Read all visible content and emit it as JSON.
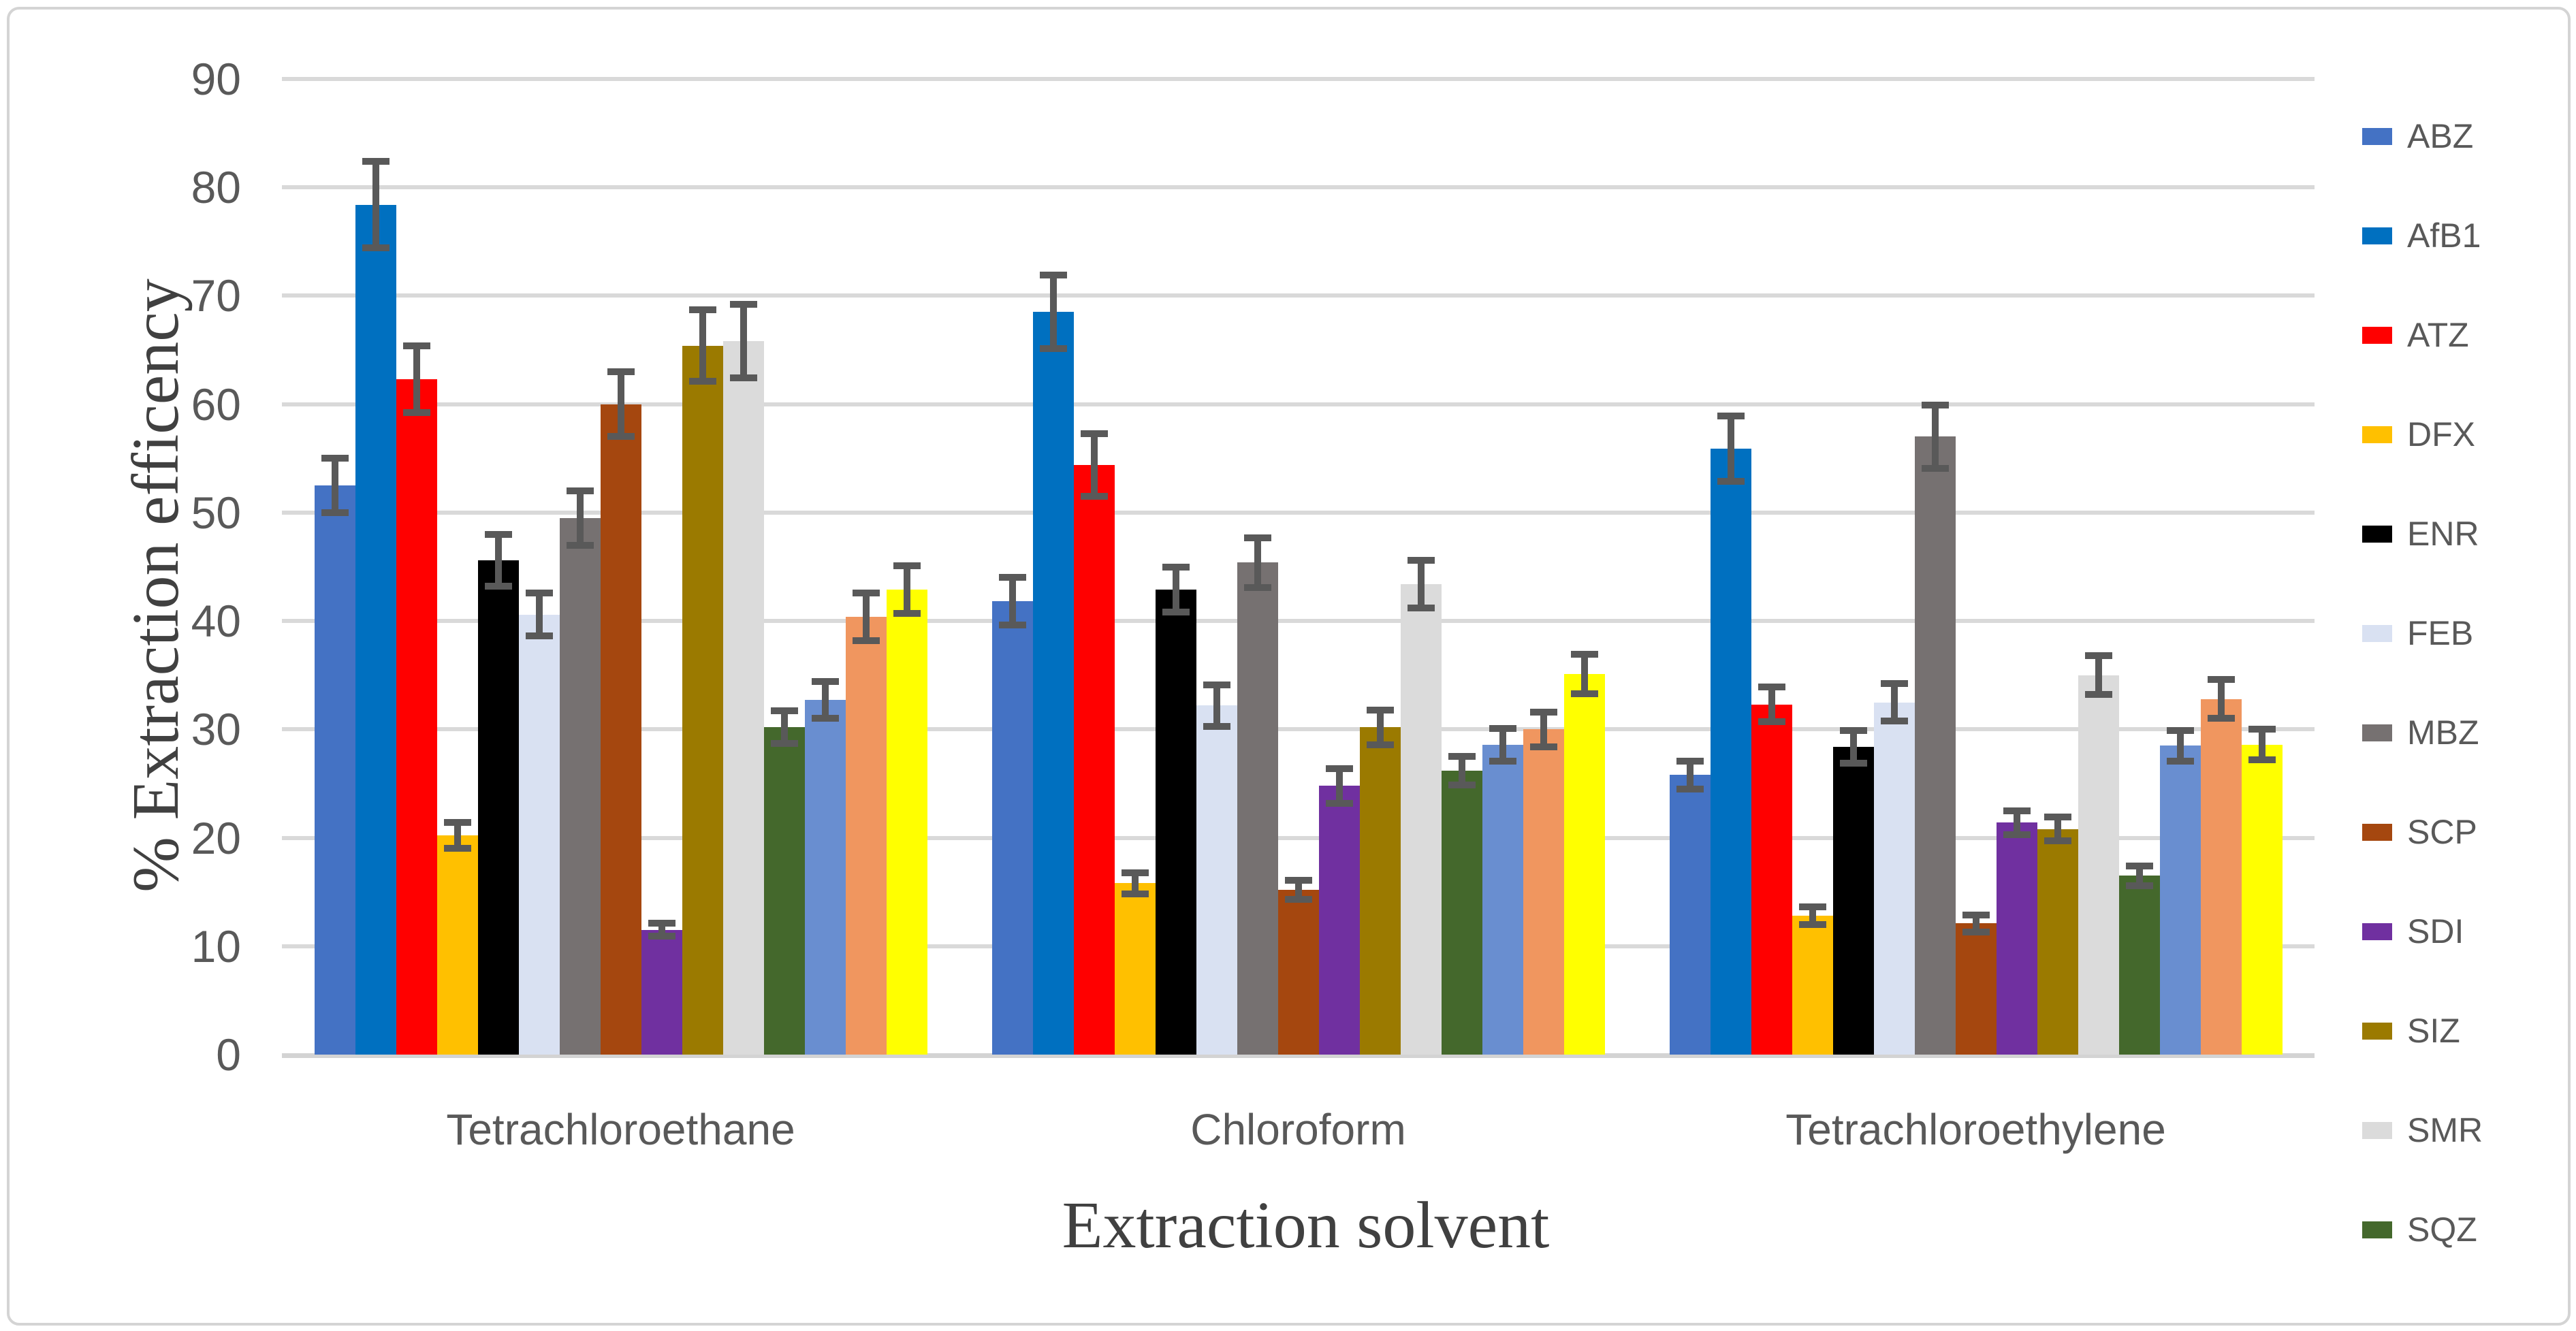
{
  "chart_data": {
    "type": "bar",
    "title": "",
    "xlabel": "Extraction solvent",
    "ylabel": "% Extraction efficency",
    "ylim": [
      0,
      90
    ],
    "yticks": [
      0,
      10,
      20,
      30,
      40,
      50,
      60,
      70,
      80,
      90
    ],
    "grid": true,
    "legend_position": "right",
    "error_bars": true,
    "categories": [
      "Tetrachloroethane",
      "Chloroform",
      "Tetrachloroethylene"
    ],
    "series": [
      {
        "name": "ABZ",
        "color": "#4472C4",
        "in_legend": true,
        "values": [
          52.5,
          41.8,
          25.8
        ],
        "errors": [
          2.5,
          2.2,
          1.3
        ]
      },
      {
        "name": "AfB1",
        "color": "#0070C0",
        "in_legend": true,
        "values": [
          78.4,
          68.5,
          55.9
        ],
        "errors": [
          4.0,
          3.4,
          3.0
        ]
      },
      {
        "name": "ATZ",
        "color": "#FF0000",
        "in_legend": true,
        "values": [
          62.3,
          54.4,
          32.3
        ],
        "errors": [
          3.1,
          2.9,
          1.6
        ]
      },
      {
        "name": "DFX",
        "color": "#FFC000",
        "in_legend": true,
        "values": [
          20.2,
          15.8,
          12.8
        ],
        "errors": [
          1.2,
          1.0,
          0.8
        ]
      },
      {
        "name": "ENR",
        "color": "#000000",
        "in_legend": true,
        "values": [
          45.6,
          42.9,
          28.4
        ],
        "errors": [
          2.4,
          2.1,
          1.5
        ]
      },
      {
        "name": "FEB",
        "color": "#D9E1F2",
        "in_legend": true,
        "values": [
          40.6,
          32.2,
          32.5
        ],
        "errors": [
          2.0,
          1.9,
          1.7
        ]
      },
      {
        "name": "MBZ",
        "color": "#767171",
        "in_legend": true,
        "values": [
          49.5,
          45.4,
          57.0
        ],
        "errors": [
          2.5,
          2.3,
          2.9
        ]
      },
      {
        "name": "SCP",
        "color": "#A5470F",
        "in_legend": true,
        "values": [
          60.0,
          15.2,
          12.1
        ],
        "errors": [
          3.0,
          0.9,
          0.8
        ]
      },
      {
        "name": "SDI",
        "color": "#7030A0",
        "in_legend": true,
        "values": [
          11.5,
          24.8,
          21.4
        ],
        "errors": [
          0.6,
          1.6,
          1.1
        ]
      },
      {
        "name": "SIZ",
        "color": "#9B7A00",
        "in_legend": true,
        "values": [
          65.4,
          30.2,
          20.8
        ],
        "errors": [
          3.3,
          1.6,
          1.1
        ]
      },
      {
        "name": "SMR",
        "color": "#DBDBDB",
        "in_legend": true,
        "values": [
          65.8,
          43.4,
          35.0
        ],
        "errors": [
          3.4,
          2.2,
          1.8
        ]
      },
      {
        "name": "SQZ",
        "color": "#44682C",
        "in_legend": true,
        "values": [
          30.2,
          26.2,
          16.5
        ],
        "errors": [
          1.5,
          1.3,
          0.9
        ]
      },
      {
        "name": "",
        "color": "#698ED0",
        "in_legend": false,
        "values": [
          32.7,
          28.6,
          28.5
        ],
        "errors": [
          1.7,
          1.5,
          1.4
        ]
      },
      {
        "name": "",
        "color": "#F0965F",
        "in_legend": false,
        "values": [
          40.4,
          30.0,
          32.8
        ],
        "errors": [
          2.2,
          1.6,
          1.8
        ]
      },
      {
        "name": "",
        "color": "#FFFF00",
        "in_legend": false,
        "values": [
          42.9,
          35.1,
          28.6
        ],
        "errors": [
          2.2,
          1.8,
          1.4
        ]
      }
    ]
  },
  "style_colors": {
    "gridline": "#d9d9d9",
    "axis_line": "#d3d3d3",
    "error_bar": "#595959",
    "tick_text": "#595959",
    "category_text": "#595959",
    "axis_title_text": "#404040",
    "frame_border": "#d4d4d4"
  }
}
